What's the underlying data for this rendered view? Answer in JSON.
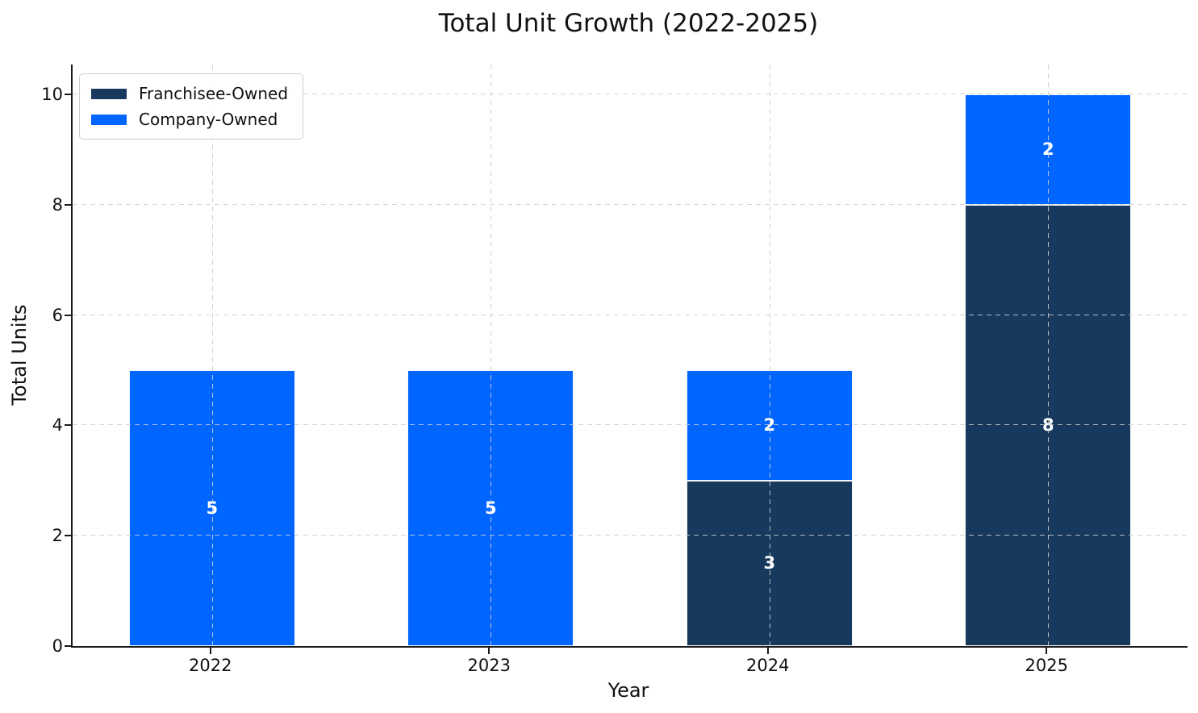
{
  "title": "Total Unit Growth (2022-2025)",
  "colors": {
    "franchisee_owned": "#17395E",
    "company_owned": "#0066FF",
    "axis": "#1a1a1a",
    "grid": "#cdcdcd",
    "bar_label_text": "#ffffff"
  },
  "legend": {
    "position": "upper-left",
    "items": [
      {
        "label": "Franchisee-Owned",
        "color": "#17395E"
      },
      {
        "label": "Company-Owned",
        "color": "#0066FF"
      }
    ]
  },
  "chart_data": {
    "type": "bar",
    "stacked": true,
    "title": "Total Unit Growth (2022-2025)",
    "xlabel": "Year",
    "ylabel": "Total Units",
    "categories": [
      "2022",
      "2023",
      "2024",
      "2025"
    ],
    "series": [
      {
        "name": "Franchisee-Owned",
        "color": "#17395E",
        "values": [
          0,
          0,
          3,
          8
        ]
      },
      {
        "name": "Company-Owned",
        "color": "#0066FF",
        "values": [
          5,
          5,
          2,
          2
        ]
      }
    ],
    "totals": [
      5,
      5,
      5,
      10
    ],
    "segment_labels_visible": true,
    "yticks": [
      0,
      2,
      4,
      6,
      8,
      10
    ],
    "ylim": [
      0,
      10.54
    ],
    "grid": "dashed, drawn over bars",
    "legend_position": "upper left"
  }
}
